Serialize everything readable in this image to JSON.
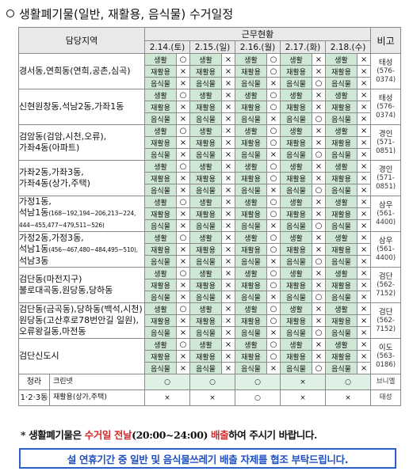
{
  "title": "생활폐기물(일반, 재활용, 음식물) 수거일정",
  "header": {
    "area": "담당지역",
    "group": "근무현황",
    "note": "비고",
    "dates": [
      "2.14.(토)",
      "2.15.(일)",
      "2.16.(월)",
      "2.17.(화)",
      "2.18.(수)"
    ]
  },
  "types": [
    "생활",
    "재활용",
    "음식물"
  ],
  "marks": {
    "yes": "○",
    "no": "×"
  },
  "notes": {
    "taeseong": {
      "name": "태성",
      "phone": "(576-0374)"
    },
    "gyeongin": {
      "name": "경인",
      "phone": "(571-0851)"
    },
    "samwoo": {
      "name": "삼우",
      "phone": "(561-4400)"
    },
    "geomdan": {
      "name": "검단",
      "phone": "(562-7152)"
    },
    "ido": {
      "name": "이도",
      "phone": "(563-0186)"
    },
    "bineul": "브니엘",
    "taeseong2": "태성"
  },
  "groups": [
    {
      "lines": [
        {
          "t": "경서동,연희동(연희,공촌,심곡)"
        }
      ],
      "note": "taeseong"
    },
    {
      "lines": [
        {
          "t": "신현원창동,석남2동,가좌1동"
        }
      ],
      "note": "taeseong"
    },
    {
      "lines": [
        {
          "t": "검암동(검암,시천,오류),"
        },
        {
          "t": "가좌4동(아파트)"
        }
      ],
      "note": "gyeongin"
    },
    {
      "lines": [
        {
          "t": "가좌2동,가좌3동,"
        },
        {
          "t": "가좌4동(상가,주택)"
        }
      ],
      "note": "gyeongin"
    },
    {
      "lines": [
        {
          "t": "가정1동,"
        },
        {
          "t": "석남1동",
          "s": "(168~192,194~206,213~224,"
        },
        {
          "s": "444~455,477~479,511~526)"
        }
      ],
      "note": "samwoo"
    },
    {
      "lines": [
        {
          "t": "가정2동,가정3동,"
        },
        {
          "t": "석남1동",
          "s": "(456~467,480~484,495~510),"
        },
        {
          "t": "석남3동"
        }
      ],
      "note": "samwoo"
    },
    {
      "lines": [
        {
          "t": "검단동(마전지구)"
        },
        {
          "t": "불로대곡동,원당동,당하동"
        }
      ],
      "note": "geomdan"
    },
    {
      "lines": [
        {
          "t": "검단동(금곡동),당하동(백석,시천)"
        },
        {
          "t": "원당동(고산후로78번안길 일원),"
        },
        {
          "t": "오류왕길동,마전동"
        }
      ],
      "note": "geomdan"
    },
    {
      "lines": [
        {
          "t": "검단신도시"
        }
      ],
      "note": "ido"
    }
  ],
  "cheongna": {
    "area_top": "청라",
    "area_bottom": "1·2·3동",
    "rows": [
      {
        "category": "크린넷",
        "marks": [
          "○",
          "○",
          "○",
          "×",
          "○"
        ],
        "note": "bineul"
      },
      {
        "category": "재활용(상가,주택)",
        "marks": [
          "×",
          "×",
          "○",
          "×",
          "×"
        ],
        "note": "taeseong2"
      }
    ]
  },
  "footer": {
    "notice_1a": "* 생활폐기물은 ",
    "notice_1b": "수거일 전날",
    "notice_1c": "(20:00~24:00) ",
    "notice_1d": "배출",
    "notice_1e": "하여 주시기 바랍니다.",
    "notice_2": "설 연휴기간 중 일반 및 음식물쓰레기 배출 자제를 협조 부탁드립니다."
  },
  "colors": {
    "type_cell": "#cfe8d6",
    "red": "#d42a2a",
    "blue": "#1f4fbf"
  }
}
